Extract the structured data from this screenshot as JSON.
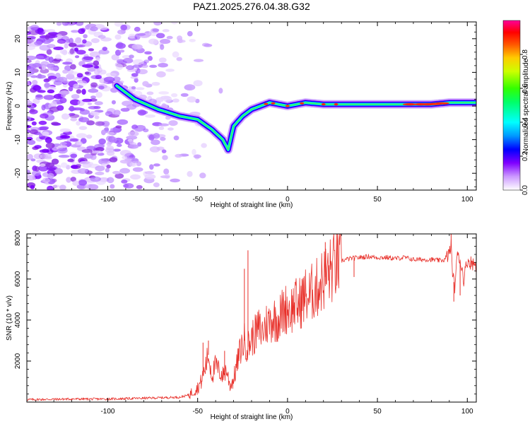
{
  "title": "PAZ1.2025.276.04.38.G32",
  "chart_data": [
    {
      "type": "heatmap",
      "xlabel": "Height of straight line (km)",
      "ylabel": "Frequency (Hz)",
      "xlim": [
        -145,
        105
      ],
      "ylim": [
        -25,
        25
      ],
      "xticks": [
        -100,
        -50,
        0,
        50,
        100
      ],
      "yticks": [
        -20,
        -10,
        0,
        10,
        20
      ],
      "grid": false,
      "colorbar": {
        "label": "Normalized spectral amplitude",
        "range": [
          0,
          1
        ],
        "ticks": [
          "0.0",
          "0.2",
          "0.4",
          "0.6",
          "0.8"
        ]
      },
      "ridge": {
        "x": [
          -95,
          -85,
          -72,
          -60,
          -50,
          -42,
          -36,
          -33,
          -30,
          -25,
          -20,
          -10,
          0,
          10,
          20,
          40,
          60,
          80,
          90,
          100,
          105
        ],
        "y": [
          6,
          2,
          -1,
          -3,
          -4,
          -7,
          -10,
          -13,
          -6,
          -3,
          -1,
          1,
          0,
          1,
          0.5,
          0.5,
          0.5,
          0.5,
          1,
          1,
          1
        ]
      }
    },
    {
      "type": "line",
      "xlabel": "Height of straight line (km)",
      "ylabel": "SNR (10 * v/v)",
      "xlim": [
        -145,
        105
      ],
      "ylim": [
        0,
        8200
      ],
      "xticks": [
        -100,
        -50,
        0,
        50,
        100
      ],
      "yticks": [
        2000,
        4000,
        6000,
        8000
      ],
      "grid": false,
      "series": [
        {
          "name": "SNR",
          "color": "#e8302a",
          "x": [
            -145,
            -120,
            -100,
            -80,
            -60,
            -55,
            -50,
            -48,
            -46,
            -44,
            -42,
            -40,
            -38,
            -36,
            -34,
            -32,
            -30,
            -28,
            -26,
            -24,
            -22,
            -20,
            -18,
            -16,
            -14,
            -12,
            -10,
            -8,
            -6,
            -4,
            -2,
            0,
            2,
            4,
            6,
            8,
            10,
            12,
            14,
            16,
            18,
            20,
            22,
            24,
            26,
            28,
            30,
            35,
            40,
            45,
            50,
            55,
            60,
            65,
            70,
            75,
            80,
            85,
            88,
            90,
            91,
            92,
            93,
            94,
            95,
            96,
            97,
            98,
            100,
            102,
            105
          ],
          "y": [
            120,
            150,
            150,
            190,
            240,
            340,
            700,
            1000,
            1600,
            2300,
            1300,
            1800,
            1500,
            1300,
            1600,
            800,
            1100,
            1900,
            2600,
            3000,
            2700,
            3100,
            3300,
            3600,
            3400,
            3800,
            3900,
            4100,
            4000,
            4200,
            4500,
            4600,
            4500,
            4800,
            4700,
            5000,
            5200,
            5100,
            5400,
            5500,
            5800,
            6000,
            6200,
            6400,
            6600,
            6800,
            6900,
            7000,
            7050,
            7100,
            7050,
            7050,
            7000,
            7050,
            6950,
            6950,
            6950,
            6900,
            6950,
            7300,
            7600,
            6100,
            5600,
            6800,
            7300,
            6900,
            6500,
            6000,
            6900,
            6800,
            6700
          ]
        }
      ],
      "spikes": {
        "x": [
          -47,
          -44,
          -35,
          -24,
          -22,
          21,
          37,
          91,
          92.5,
          96
        ],
        "y": [
          2900,
          3000,
          2500,
          6500,
          7400,
          7800,
          6100,
          8200,
          4900,
          5200
        ]
      }
    }
  ]
}
